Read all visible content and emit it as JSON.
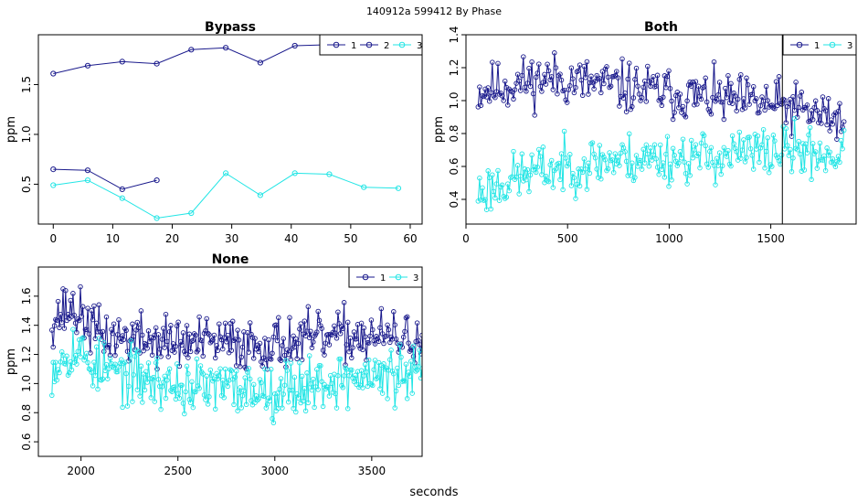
{
  "header": {
    "title": "140912a   599412   By Phase"
  },
  "footer": {
    "xlabel": "seconds"
  },
  "colors": {
    "series_1": "#1a1a8c",
    "series_2": "#1a1a8c",
    "series_3": "#22e5e5",
    "frame": "#000000",
    "background": "#ffffff"
  },
  "chart_data": [
    {
      "id": "bypass",
      "type": "line",
      "title": "Bypass",
      "xlabel": "",
      "ylabel": "ppm",
      "xlim": [
        -2.5,
        62
      ],
      "ylim": [
        0.1,
        2.0
      ],
      "xticks": [
        0,
        10,
        20,
        30,
        40,
        50,
        60
      ],
      "yticks": [
        0.5,
        1.0,
        1.5
      ],
      "legend": {
        "position": "top-right",
        "entries": [
          "1",
          "2",
          "3"
        ]
      },
      "series": [
        {
          "name": "1",
          "color": "#1a1a8c",
          "x": [
            0,
            5.8,
            11.6,
            17.4,
            23.2,
            29,
            34.8,
            40.6,
            46.4
          ],
          "y": [
            1.61,
            1.69,
            1.73,
            1.71,
            1.85,
            1.87,
            1.72,
            1.89,
            1.9
          ]
        },
        {
          "name": "2",
          "color": "#1a1a8c",
          "x": [
            0,
            5.8,
            11.6,
            17.4
          ],
          "y": [
            0.65,
            0.64,
            0.45,
            0.54
          ]
        },
        {
          "name": "3",
          "color": "#22e5e5",
          "x": [
            0,
            5.8,
            11.6,
            17.4,
            23.2,
            29,
            34.8,
            40.6,
            46.4,
            52.2,
            58
          ],
          "y": [
            0.49,
            0.54,
            0.36,
            0.16,
            0.21,
            0.61,
            0.39,
            0.61,
            0.6,
            0.47,
            0.46
          ]
        }
      ]
    },
    {
      "id": "both",
      "type": "line",
      "title": "Both",
      "xlabel": "",
      "ylabel": "ppm",
      "xlim": [
        0,
        1920
      ],
      "ylim": [
        0.25,
        1.4
      ],
      "xticks": [
        0,
        500,
        1000,
        1500
      ],
      "yticks": [
        0.4,
        0.6,
        0.8,
        1.0,
        1.2,
        1.4
      ],
      "vline_x": 1557,
      "legend": {
        "position": "top-right",
        "entries": [
          "1",
          "3"
        ]
      },
      "dense_series": [
        {
          "name": "1",
          "color": "#1a1a8c",
          "x_start": 60,
          "x_end": 1860,
          "count": 260,
          "seed": 11,
          "mean": [
            [
              60,
              1.06
            ],
            [
              400,
              1.14
            ],
            [
              900,
              1.06
            ],
            [
              1300,
              1.0
            ],
            [
              1550,
              0.97
            ],
            [
              1860,
              0.88
            ]
          ],
          "spread": 0.13
        },
        {
          "name": "3",
          "color": "#22e5e5",
          "x_start": 60,
          "x_end": 1860,
          "count": 260,
          "seed": 23,
          "mean": [
            [
              60,
              0.44
            ],
            [
              300,
              0.56
            ],
            [
              700,
              0.64
            ],
            [
              1200,
              0.66
            ],
            [
              1600,
              0.7
            ],
            [
              1860,
              0.66
            ]
          ],
          "spread": 0.13
        }
      ]
    },
    {
      "id": "none",
      "type": "line",
      "title": "None",
      "xlabel": "seconds",
      "ylabel": "ppm",
      "xlim": [
        1780,
        3760
      ],
      "ylim": [
        0.5,
        1.8
      ],
      "xticks": [
        2000,
        2500,
        3000,
        3500
      ],
      "yticks": [
        0.6,
        0.8,
        1.0,
        1.2,
        1.4,
        1.6
      ],
      "legend": {
        "position": "top-right",
        "entries": [
          "1",
          "3"
        ]
      },
      "dense_series": [
        {
          "name": "1",
          "color": "#1a1a8c",
          "x_start": 1850,
          "x_end": 3760,
          "count": 300,
          "seed": 37,
          "mean": [
            [
              1850,
              1.45
            ],
            [
              1950,
              1.52
            ],
            [
              2100,
              1.33
            ],
            [
              2500,
              1.28
            ],
            [
              3000,
              1.27
            ],
            [
              3400,
              1.33
            ],
            [
              3760,
              1.3
            ]
          ],
          "spread": 0.15
        },
        {
          "name": "3",
          "color": "#22e5e5",
          "x_start": 1850,
          "x_end": 3760,
          "count": 300,
          "seed": 53,
          "mean": [
            [
              1850,
              1.12
            ],
            [
              1950,
              1.25
            ],
            [
              2100,
              1.1
            ],
            [
              2500,
              0.98
            ],
            [
              3000,
              0.96
            ],
            [
              3400,
              1.04
            ],
            [
              3760,
              1.06
            ]
          ],
          "spread": 0.16
        }
      ]
    }
  ]
}
